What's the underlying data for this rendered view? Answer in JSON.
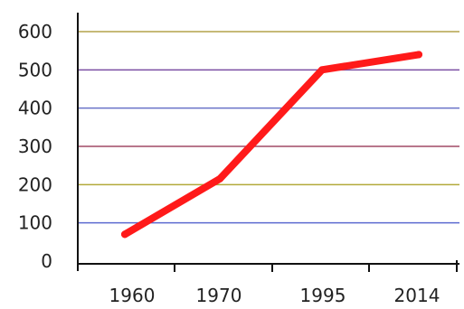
{
  "chart_data": {
    "type": "line",
    "title": "",
    "xlabel": "",
    "ylabel": "",
    "categories": [
      "1960",
      "1970",
      "1995",
      "2014"
    ],
    "x": [
      1960,
      1970,
      1995,
      2014
    ],
    "y_ticks": [
      "0",
      "100",
      "200",
      "300",
      "400",
      "500",
      "600"
    ],
    "ylim": [
      0,
      600
    ],
    "grid": true,
    "series": [
      {
        "values": [
          70,
          215,
          500,
          540
        ],
        "color": "#ff1a1a"
      }
    ],
    "gridline_colors": [
      "#6b6b6b",
      "#5b6ad0",
      "#b3a93a",
      "#a04a66",
      "#6a73c8",
      "#7b4fa3",
      "#b4a24a"
    ]
  }
}
